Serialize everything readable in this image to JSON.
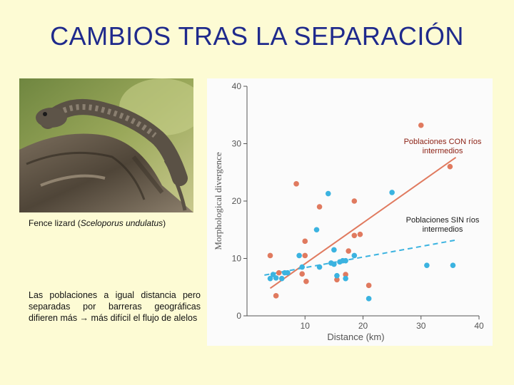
{
  "slide": {
    "title": "CAMBIOS TRAS LA SEPARACIÓN",
    "caption_prefix": "Fence lizard (",
    "caption_species": "Sceloporus undulatus",
    "caption_suffix": ")",
    "note": "Las poblaciones a igual distancia pero separadas por barreras geográficas difieren más → más difícil el flujo de alelos",
    "label_con": "Poblaciones CON ríos intermedios",
    "label_sin": "Poblaciones SIN ríos intermedios"
  },
  "colors": {
    "background": "#fdfbd4",
    "title": "#1f2a8c",
    "con_rivers": "#e07a5f",
    "sin_rivers": "#3bb3e0",
    "axis": "#555555"
  },
  "chart_data": {
    "type": "scatter",
    "xlabel": "Distance (km)",
    "ylabel": "Morphological divergence",
    "xlim": [
      0,
      40
    ],
    "ylim": [
      0,
      40
    ],
    "xticks": [
      10,
      20,
      30,
      40
    ],
    "yticks": [
      0,
      10,
      20,
      30,
      40
    ],
    "grid": false,
    "series": [
      {
        "name": "Poblaciones CON ríos intermedios",
        "color": "#e07a5f",
        "points": [
          [
            4,
            10.5
          ],
          [
            5,
            3.5
          ],
          [
            5.5,
            7.5
          ],
          [
            8.5,
            23
          ],
          [
            9.5,
            7.3
          ],
          [
            10,
            10.5
          ],
          [
            10,
            13
          ],
          [
            10.2,
            6
          ],
          [
            12.5,
            19
          ],
          [
            15.5,
            6.3
          ],
          [
            17,
            7.2
          ],
          [
            17.5,
            11.3
          ],
          [
            18.5,
            20
          ],
          [
            18.5,
            14
          ],
          [
            19.5,
            14.2
          ],
          [
            21,
            5.3
          ],
          [
            30,
            33.2
          ],
          [
            35,
            26
          ]
        ],
        "trend": [
          [
            4,
            4.8
          ],
          [
            36,
            27.6
          ]
        ]
      },
      {
        "name": "Poblaciones SIN ríos intermedios",
        "color": "#3bb3e0",
        "points": [
          [
            4,
            6.5
          ],
          [
            4.5,
            7.2
          ],
          [
            5,
            6.6
          ],
          [
            6,
            6.5
          ],
          [
            6.5,
            7.5
          ],
          [
            7,
            7.5
          ],
          [
            9,
            10.5
          ],
          [
            9.5,
            8.5
          ],
          [
            12,
            15
          ],
          [
            12.5,
            8.5
          ],
          [
            14,
            21.3
          ],
          [
            14.5,
            9.2
          ],
          [
            15,
            11.5
          ],
          [
            15,
            9
          ],
          [
            15.5,
            7
          ],
          [
            16,
            9.4
          ],
          [
            16.5,
            9.6
          ],
          [
            17,
            9.6
          ],
          [
            17,
            6.5
          ],
          [
            18.5,
            10.5
          ],
          [
            21,
            3
          ],
          [
            25,
            21.5
          ],
          [
            31,
            8.8
          ],
          [
            35.5,
            8.8
          ]
        ],
        "trend": [
          [
            3,
            7.1
          ],
          [
            36,
            13.2
          ]
        ]
      }
    ]
  }
}
